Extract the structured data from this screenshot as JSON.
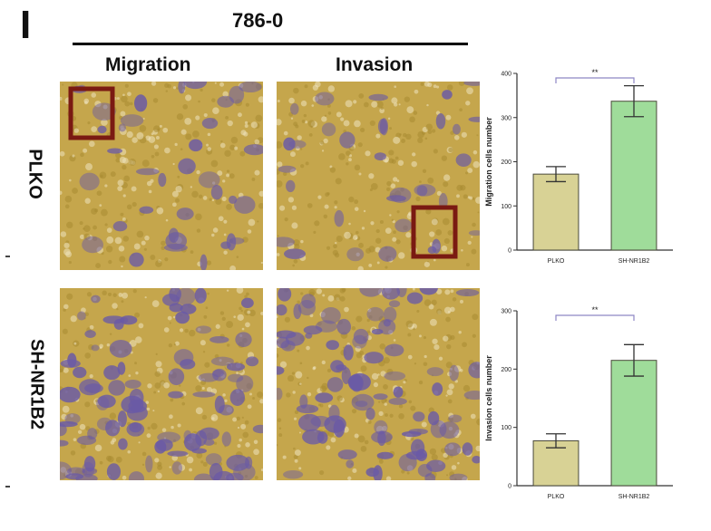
{
  "figure": {
    "panel_letter": "I",
    "cell_line": "786-0",
    "columns": [
      "Migration",
      "Invasion"
    ],
    "rows": [
      "PLKO",
      "SH-NR1B2"
    ]
  },
  "colors": {
    "stain_purple": "#6a5aa6",
    "background_tan": "#c5a64c",
    "highlight_box": "#7a1a12",
    "bar_plko": "#d8d295",
    "bar_sh": "#9fdc9a",
    "bracket": "#8e86c4"
  },
  "chart_data": [
    {
      "type": "bar",
      "categories": [
        "PLKO",
        "SH-NR1B2"
      ],
      "values": [
        172,
        337
      ],
      "errors": [
        17,
        35
      ],
      "ylabel": "Migration cells number",
      "ylim": [
        0,
        400
      ],
      "yticks": [
        "0",
        "100",
        "200",
        "300",
        "400"
      ],
      "significance": "**",
      "grid": false
    },
    {
      "type": "bar",
      "categories": [
        "PLKO",
        "SH-NR1B2"
      ],
      "values": [
        77,
        215
      ],
      "errors": [
        12,
        27
      ],
      "ylabel": "Invasion cells number",
      "ylim": [
        0,
        300
      ],
      "yticks": [
        "0",
        "100",
        "200",
        "300"
      ],
      "significance": "**",
      "grid": false
    }
  ]
}
